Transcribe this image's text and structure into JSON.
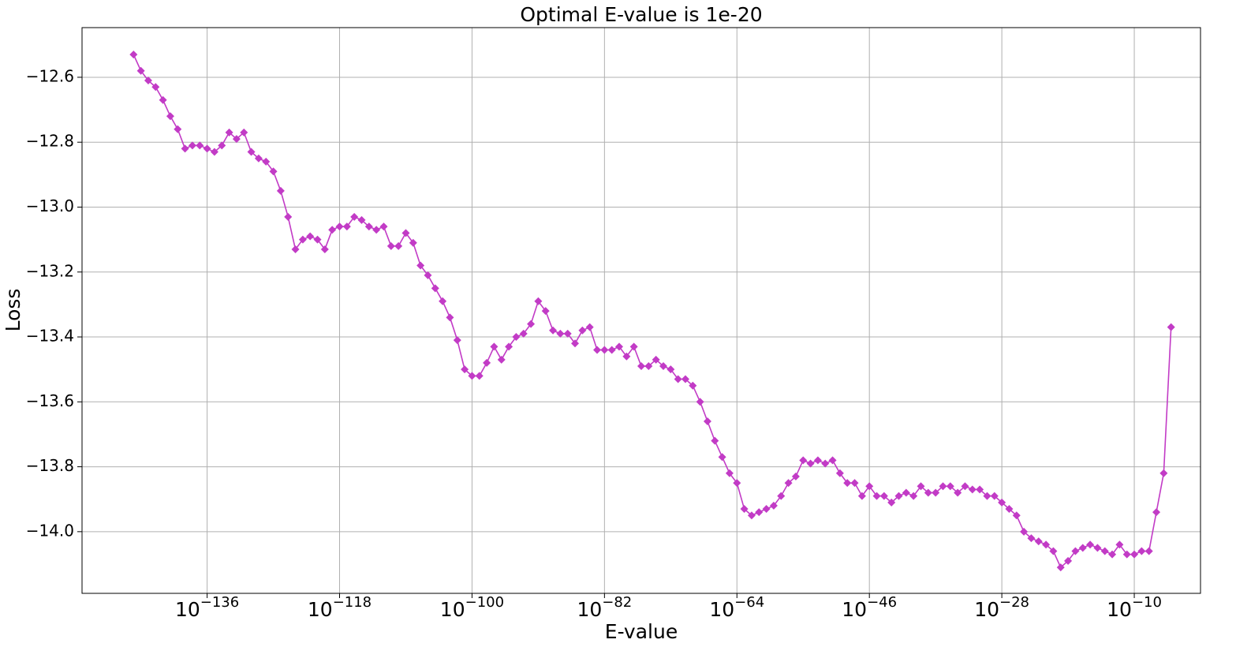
{
  "chart_data": {
    "type": "line",
    "title": "Optimal E-value is 1e-20",
    "xlabel": "E-value",
    "ylabel": "Loss",
    "xscale": "log",
    "grid": true,
    "color": "#c23bc6",
    "marker": "diamond",
    "x": [
      1e-146,
      1e-145,
      1e-144,
      1e-143,
      1e-142,
      1e-141,
      1e-140,
      1e-139,
      1e-138,
      1e-137,
      1e-136,
      1e-135,
      1e-134,
      1e-133,
      1e-132,
      1e-131,
      1e-130,
      1e-129,
      1e-128,
      1e-127,
      1e-126,
      1e-125,
      1e-124,
      1e-123,
      1e-122,
      1e-121,
      1e-120,
      1e-119,
      1e-118,
      1e-117,
      1e-116,
      1e-115,
      1e-114,
      1e-113,
      1e-112,
      1e-111,
      1e-110,
      1e-109,
      1e-108,
      1e-107,
      1e-106,
      1e-105,
      1e-104,
      1e-103,
      1e-102,
      1e-101,
      1e-100,
      1e-99,
      1e-98,
      1e-97,
      1e-96,
      1e-95,
      1e-94,
      1e-93,
      1e-92,
      1e-91,
      1e-90,
      1e-89,
      1e-88,
      1e-87,
      1e-86,
      1e-85,
      1e-84,
      1e-83,
      1e-82,
      1e-81,
      1e-80,
      1e-79,
      1e-78,
      1e-77,
      1e-76,
      1e-75,
      1e-74,
      1e-73,
      1e-72,
      1e-71,
      1e-70,
      1e-69,
      1e-68,
      1e-67,
      1e-66,
      1e-65,
      1e-64,
      1e-63,
      1e-62,
      1e-61,
      1e-60,
      1e-59,
      1e-58,
      1e-57,
      1e-56,
      1e-55,
      1e-54,
      1e-53,
      1e-52,
      1e-51,
      1e-50,
      1e-49,
      1e-48,
      1e-47,
      1e-46,
      1e-45,
      1e-44,
      1e-43,
      1e-42,
      1e-41,
      1e-40,
      1e-39,
      1e-38,
      1e-37,
      1e-36,
      1e-35,
      1e-34,
      1e-33,
      1e-32,
      1e-31,
      1e-30,
      1e-29,
      1e-28,
      1e-27,
      1e-26,
      1e-25,
      1e-24,
      1e-23,
      1e-22,
      1e-21,
      1e-20,
      1e-19,
      1e-18,
      1e-17,
      1e-16,
      1e-15,
      1e-14,
      1e-13,
      1e-12,
      1e-11,
      1e-10,
      1e-09,
      1e-08,
      1e-07,
      1e-06,
      1e-05
    ],
    "values": [
      -12.53,
      -12.58,
      -12.61,
      -12.63,
      -12.67,
      -12.72,
      -12.76,
      -12.82,
      -12.81,
      -12.81,
      -12.82,
      -12.83,
      -12.81,
      -12.77,
      -12.79,
      -12.77,
      -12.83,
      -12.85,
      -12.86,
      -12.89,
      -12.95,
      -13.03,
      -13.13,
      -13.1,
      -13.09,
      -13.1,
      -13.13,
      -13.07,
      -13.06,
      -13.06,
      -13.03,
      -13.04,
      -13.06,
      -13.07,
      -13.06,
      -13.12,
      -13.12,
      -13.08,
      -13.11,
      -13.18,
      -13.21,
      -13.25,
      -13.29,
      -13.34,
      -13.41,
      -13.5,
      -13.52,
      -13.52,
      -13.48,
      -13.43,
      -13.47,
      -13.43,
      -13.4,
      -13.39,
      -13.36,
      -13.29,
      -13.32,
      -13.38,
      -13.39,
      -13.39,
      -13.42,
      -13.38,
      -13.37,
      -13.44,
      -13.44,
      -13.44,
      -13.43,
      -13.46,
      -13.43,
      -13.49,
      -13.49,
      -13.47,
      -13.49,
      -13.5,
      -13.53,
      -13.53,
      -13.55,
      -13.6,
      -13.66,
      -13.72,
      -13.77,
      -13.82,
      -13.85,
      -13.93,
      -13.95,
      -13.94,
      -13.93,
      -13.92,
      -13.89,
      -13.85,
      -13.83,
      -13.78,
      -13.79,
      -13.78,
      -13.79,
      -13.78,
      -13.82,
      -13.85,
      -13.85,
      -13.89,
      -13.86,
      -13.89,
      -13.89,
      -13.91,
      -13.89,
      -13.88,
      -13.89,
      -13.86,
      -13.88,
      -13.88,
      -13.86,
      -13.86,
      -13.88,
      -13.86,
      -13.87,
      -13.87,
      -13.89,
      -13.89,
      -13.91,
      -13.93,
      -13.95,
      -14.0,
      -14.02,
      -14.03,
      -14.04,
      -14.06,
      -14.11,
      -14.09,
      -14.06,
      -14.05,
      -14.04,
      -14.05,
      -14.06,
      -14.07,
      -14.04,
      -14.07,
      -14.07,
      -14.06,
      -14.06,
      -13.94,
      -13.82,
      -13.37
    ],
    "xlim": [
      1e-153,
      0.1
    ],
    "xticks": [
      {
        "value": 1e-136,
        "label": "10",
        "exponent": "−136"
      },
      {
        "value": 1e-118,
        "label": "10",
        "exponent": "−118"
      },
      {
        "value": 1e-100,
        "label": "10",
        "exponent": "−100"
      },
      {
        "value": 1e-82,
        "label": "10",
        "exponent": "−82"
      },
      {
        "value": 1e-64,
        "label": "10",
        "exponent": "−64"
      },
      {
        "value": 1e-46,
        "label": "10",
        "exponent": "−46"
      },
      {
        "value": 1e-28,
        "label": "10",
        "exponent": "−28"
      },
      {
        "value": 1e-10,
        "label": "10",
        "exponent": "−10"
      }
    ],
    "ylim": [
      -14.19,
      -12.447
    ],
    "yticks": [
      {
        "value": -12.6,
        "label": "−12.6"
      },
      {
        "value": -12.8,
        "label": "−12.8"
      },
      {
        "value": -13.0,
        "label": "−13.0"
      },
      {
        "value": -13.2,
        "label": "−13.2"
      },
      {
        "value": -13.4,
        "label": "−13.4"
      },
      {
        "value": -13.6,
        "label": "−13.6"
      },
      {
        "value": -13.8,
        "label": "−13.8"
      },
      {
        "value": -14.0,
        "label": "−14.0"
      }
    ]
  }
}
